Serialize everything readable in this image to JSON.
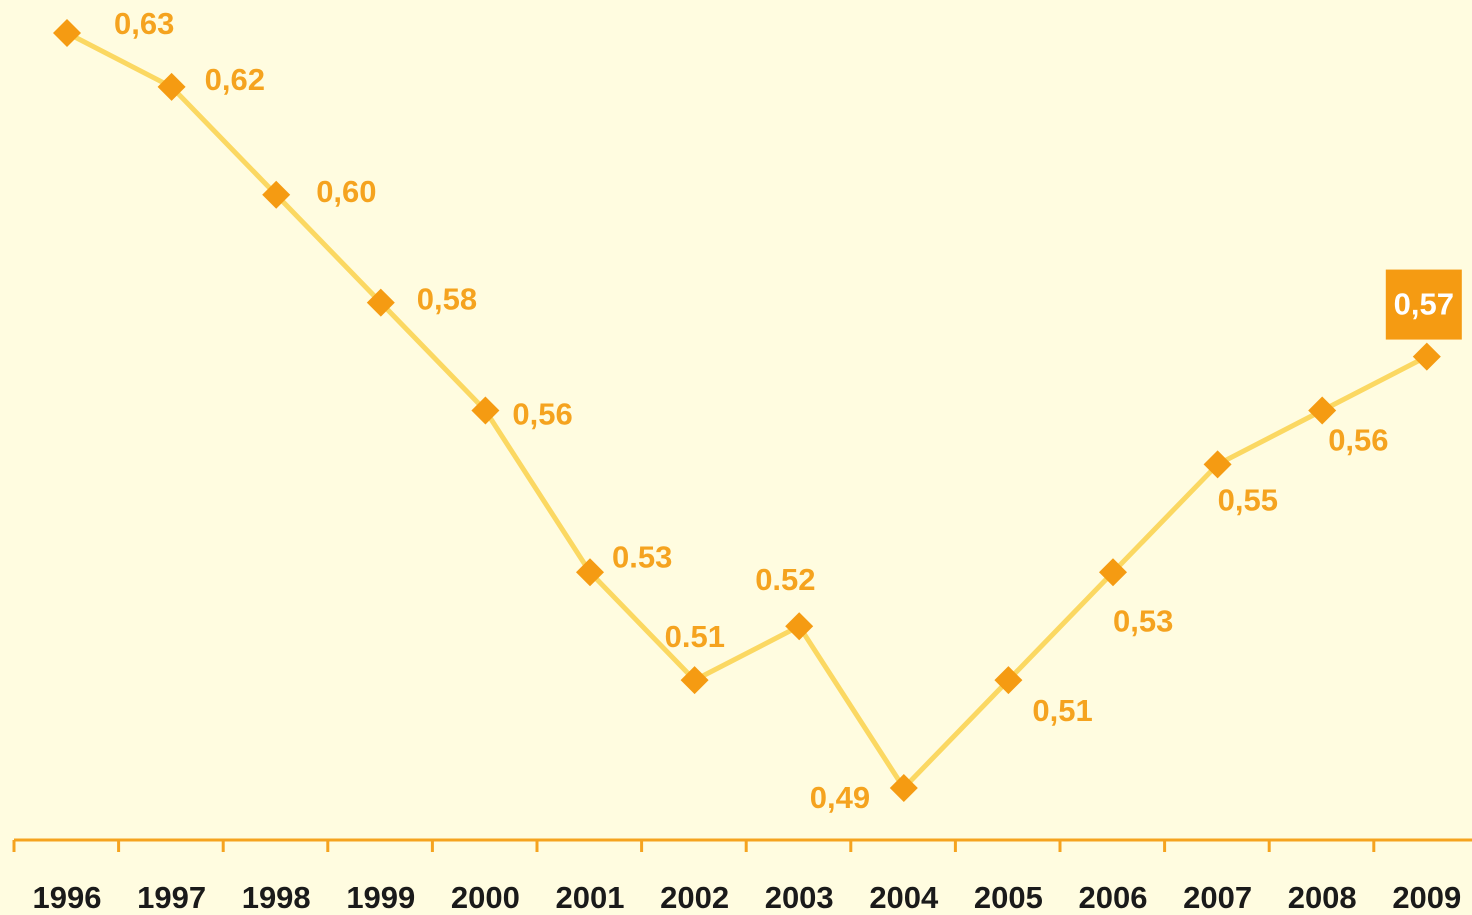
{
  "chart_data": {
    "type": "line",
    "x": [
      "1996",
      "1997",
      "1998",
      "1999",
      "2000",
      "2001",
      "2002",
      "2003",
      "2004",
      "2005",
      "2006",
      "2007",
      "2008",
      "2009"
    ],
    "values": [
      0.63,
      0.62,
      0.6,
      0.58,
      0.56,
      0.53,
      0.51,
      0.52,
      0.49,
      0.51,
      0.53,
      0.55,
      0.56,
      0.57
    ],
    "data_labels": [
      "0,63",
      "0,62",
      "0,60",
      "0,58",
      "0,56",
      "0.53",
      "0.51",
      "0.52",
      "0,49",
      "0,51",
      "0,53",
      "0,55",
      "0,56",
      "0,57"
    ],
    "highlight_index": 13,
    "ylim": [
      0.465,
      0.635
    ],
    "grid": false,
    "legend": "none",
    "colors": {
      "background": "#fffce0",
      "line": "#fbd862",
      "marker": "#f59b12",
      "label": "#f5a31f",
      "axis": "#f5a31f",
      "highlight_box": "#f59b12",
      "highlight_text": "#ffffff",
      "tick_text": "#1a1a1a"
    }
  }
}
